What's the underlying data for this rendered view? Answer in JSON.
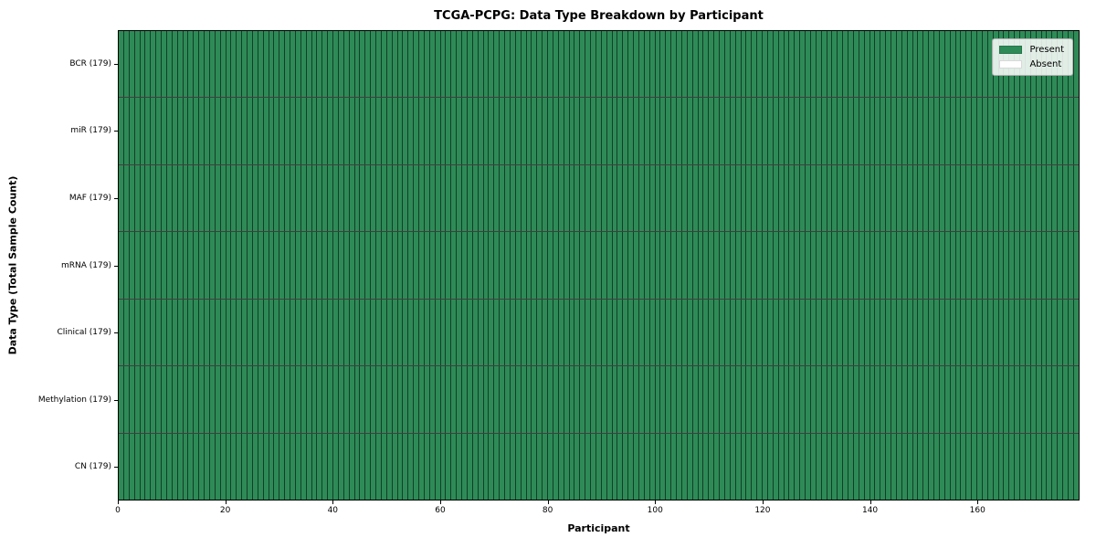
{
  "chart_data": {
    "type": "heatmap",
    "title": "TCGA-PCPG: Data Type Breakdown by Participant",
    "xlabel": "Participant",
    "ylabel": "Data Type (Total Sample Count)",
    "x_tick_values": [
      0,
      20,
      40,
      60,
      80,
      100,
      120,
      140,
      160
    ],
    "xlim": [
      0,
      179
    ],
    "n_participants": 179,
    "rows": [
      {
        "label": "BCR (179)",
        "data_type": "BCR",
        "total_samples": 179,
        "present_participants": 179
      },
      {
        "label": "miR (179)",
        "data_type": "miR",
        "total_samples": 179,
        "present_participants": 179
      },
      {
        "label": "MAF (179)",
        "data_type": "MAF",
        "total_samples": 179,
        "present_participants": 179
      },
      {
        "label": "mRNA (179)",
        "data_type": "mRNA",
        "total_samples": 179,
        "present_participants": 179
      },
      {
        "label": "Clinical (179)",
        "data_type": "Clinical",
        "total_samples": 179,
        "present_participants": 179
      },
      {
        "label": "Methylation (179)",
        "data_type": "Methylation",
        "total_samples": 179,
        "present_participants": 179
      },
      {
        "label": "CN (179)",
        "data_type": "CN",
        "total_samples": 179,
        "present_participants": 179
      }
    ],
    "legend": {
      "position": "upper right",
      "entries": [
        {
          "label": "Present",
          "color": "#2e8b57"
        },
        {
          "label": "Absent",
          "color": "#ffffff"
        }
      ]
    },
    "colors": {
      "present": "#2e8b57",
      "absent": "#ffffff",
      "cell_edge": "rgba(0,0,0,0.55)",
      "row_edge": "rgba(0,0,0,0.75)"
    },
    "grid": true
  }
}
